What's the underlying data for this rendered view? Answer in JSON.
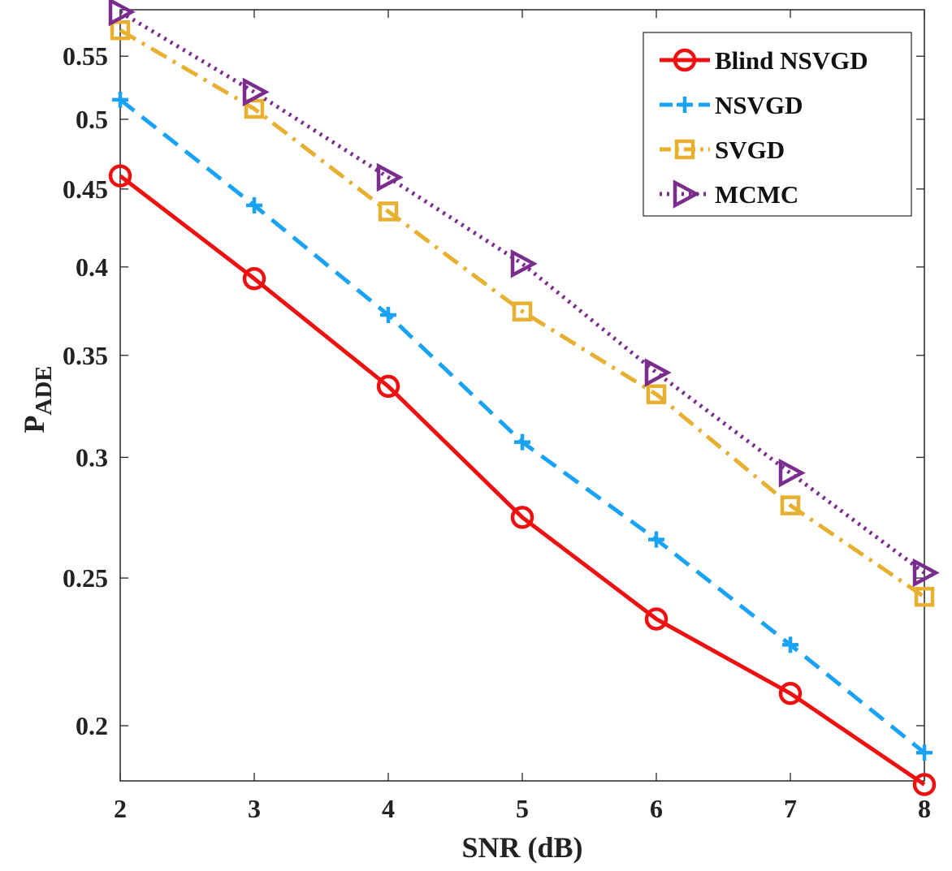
{
  "chart_data": {
    "type": "line",
    "title": "",
    "xlabel": "SNR (dB)",
    "ylabel_main": "P",
    "ylabel_sub": "ADE",
    "yscale": "log",
    "xlim": [
      2,
      8
    ],
    "ylim": [
      0.184,
      0.59
    ],
    "x": [
      2,
      3,
      4,
      5,
      6,
      7,
      8
    ],
    "xticks": [
      2,
      3,
      4,
      5,
      6,
      7,
      8
    ],
    "yticks": [
      0.2,
      0.25,
      0.3,
      0.35,
      0.4,
      0.45,
      0.5,
      0.55
    ],
    "yticklabels": [
      "0.2",
      "0.25",
      "0.3",
      "0.35",
      "0.4",
      "0.45",
      "0.5",
      "0.55"
    ],
    "legend_position": "top-right",
    "series": [
      {
        "name": "Blind NSVGD",
        "color": "#ee1111",
        "marker": "circle",
        "dash": "solid",
        "values": [
          0.459,
          0.393,
          0.334,
          0.274,
          0.235,
          0.21,
          0.183
        ]
      },
      {
        "name": "NSVGD",
        "color": "#1aa3f5",
        "marker": "plus",
        "dash": "dashed",
        "values": [
          0.515,
          0.439,
          0.372,
          0.307,
          0.265,
          0.226,
          0.192
        ]
      },
      {
        "name": "SVGD",
        "color": "#e8b030",
        "marker": "square",
        "dash": "dashdot",
        "values": [
          0.572,
          0.508,
          0.435,
          0.374,
          0.33,
          0.279,
          0.243
        ]
      },
      {
        "name": "MCMC",
        "color": "#7b2d8e",
        "marker": "triangle-right",
        "dash": "dotted",
        "values": [
          0.588,
          0.521,
          0.458,
          0.402,
          0.341,
          0.293,
          0.252
        ]
      }
    ]
  }
}
